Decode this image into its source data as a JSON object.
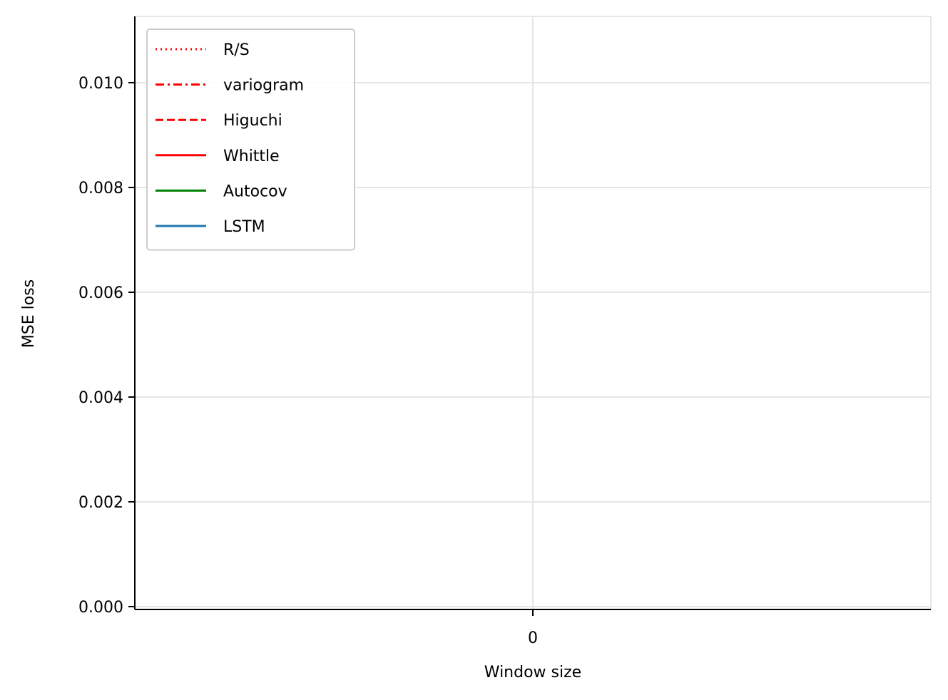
{
  "chart_data": {
    "type": "line",
    "xlabel": "Window size",
    "ylabel": "MSE loss",
    "x_ticks": [
      0
    ],
    "y_ticks": [
      "0.000",
      "0.002",
      "0.004",
      "0.006",
      "0.008",
      "0.010"
    ],
    "ylim": [
      0,
      0.0112
    ],
    "xlim": [
      -1,
      1
    ],
    "grid": true,
    "legend_position": "upper-left",
    "series": [
      {
        "name": "R/S",
        "color": "#ff0000",
        "dash": "dotted",
        "x": [],
        "values": []
      },
      {
        "name": "variogram",
        "color": "#ff0000",
        "dash": "dashdot",
        "x": [],
        "values": []
      },
      {
        "name": "Higuchi",
        "color": "#ff0000",
        "dash": "dashed",
        "x": [],
        "values": []
      },
      {
        "name": "Whittle",
        "color": "#ff0000",
        "dash": "solid",
        "x": [],
        "values": []
      },
      {
        "name": "Autocov",
        "color": "#008000",
        "dash": "solid",
        "x": [],
        "values": []
      },
      {
        "name": "LSTM",
        "color": "#1f77b4",
        "dash": "solid",
        "x": [],
        "values": []
      }
    ]
  }
}
